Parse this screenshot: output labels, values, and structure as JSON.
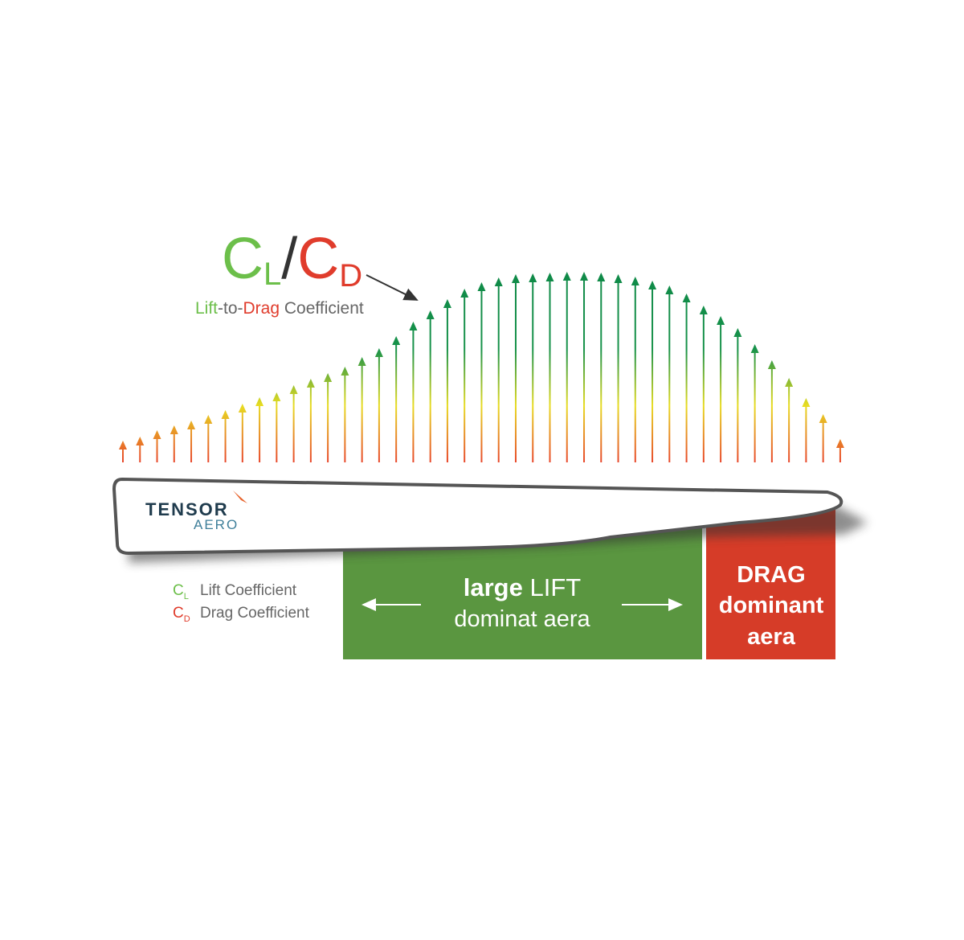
{
  "ratio": {
    "lift_symbol": "C",
    "lift_sub": "L",
    "separator": "/",
    "drag_symbol": "C",
    "drag_sub": "D"
  },
  "subtitle": {
    "lift": "Lift",
    "joiner": "-to-",
    "drag": "Drag",
    "rest": "Coefficient"
  },
  "logo": {
    "line1": "TENSOR",
    "line2": "AERO"
  },
  "legend": [
    {
      "symbol": "C",
      "sub": "L",
      "label": "Lift Coefficient"
    },
    {
      "symbol": "C",
      "sub": "D",
      "label": "Drag Coefficient"
    }
  ],
  "lift_zone": {
    "bold": "large",
    "rest": "LIFT",
    "line2": "dominat aera"
  },
  "drag_zone": {
    "lines": [
      "DRAG",
      "dominant",
      "aera"
    ]
  }
}
